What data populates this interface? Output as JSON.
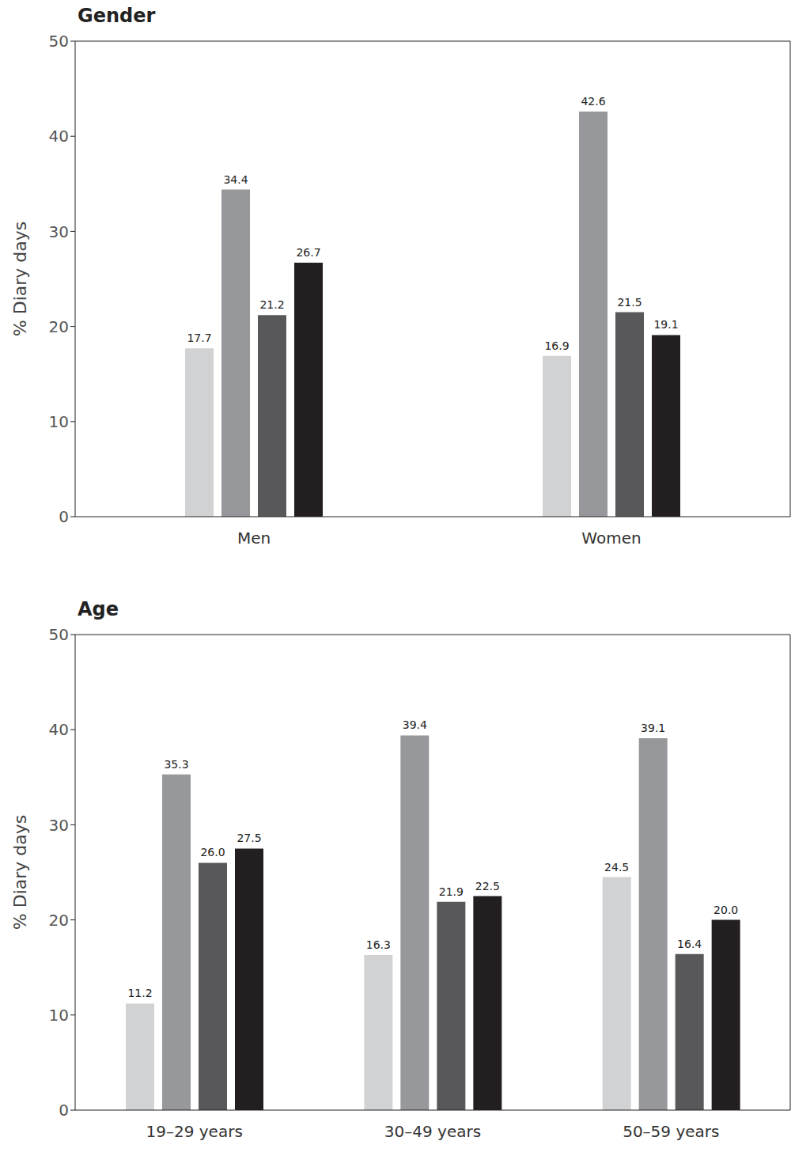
{
  "chart_data": [
    {
      "type": "bar",
      "title": "Gender",
      "y_label": "% Diary days",
      "categories": [
        "Men",
        "Women"
      ],
      "series": [
        {
          "color": "#d1d2d4",
          "values": [
            17.7,
            16.9
          ],
          "value_labels": [
            "17.7",
            "16.9"
          ]
        },
        {
          "color": "#97989c",
          "values": [
            34.4,
            42.6
          ],
          "value_labels": [
            "34.4",
            "42.6"
          ]
        },
        {
          "color": "#58585a",
          "values": [
            21.2,
            21.5
          ],
          "value_labels": [
            "21.2",
            "21.5"
          ]
        },
        {
          "color": "#231f20",
          "values": [
            26.7,
            19.1
          ],
          "value_labels": [
            "26.7",
            "19.1"
          ]
        }
      ],
      "ylim": [
        0,
        50
      ],
      "yticks": [
        0,
        10,
        20,
        30,
        40,
        50
      ],
      "grid": false,
      "data_labels": true
    },
    {
      "type": "bar",
      "title": "Age",
      "y_label": "% Diary days",
      "categories": [
        "19–29 years",
        "30–49 years",
        "50–59 years"
      ],
      "series": [
        {
          "color": "#d1d2d4",
          "values": [
            11.2,
            16.3,
            24.5
          ],
          "value_labels": [
            "11.2",
            "16.3",
            "24.5"
          ]
        },
        {
          "color": "#97989c",
          "values": [
            35.3,
            39.4,
            39.1
          ],
          "value_labels": [
            "35.3",
            "39.4",
            "39.1"
          ]
        },
        {
          "color": "#58585a",
          "values": [
            26.0,
            21.9,
            16.4
          ],
          "value_labels": [
            "26.0",
            "21.9",
            "16.4"
          ]
        },
        {
          "color": "#231f20",
          "values": [
            27.5,
            22.5,
            20.0
          ],
          "value_labels": [
            "27.5",
            "22.5",
            "20.0"
          ]
        }
      ],
      "ylim": [
        0,
        50
      ],
      "yticks": [
        0,
        10,
        20,
        30,
        40,
        50
      ],
      "grid": false,
      "data_labels": true
    }
  ]
}
